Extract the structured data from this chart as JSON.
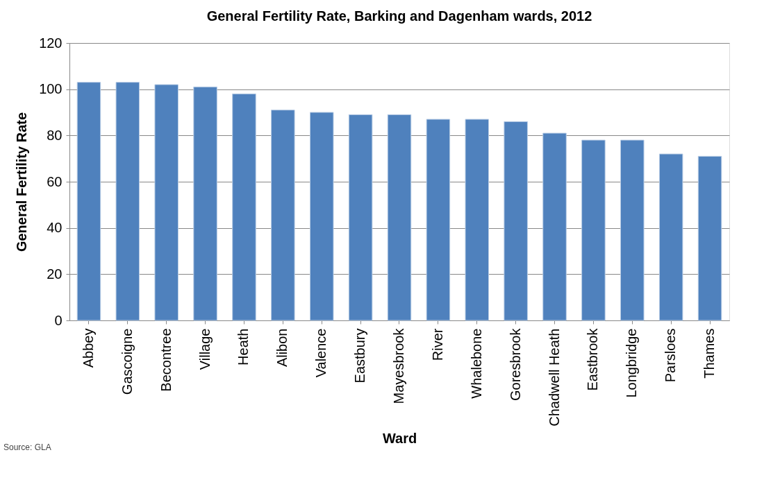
{
  "chart_data": {
    "type": "bar",
    "title": "General Fertility Rate, Barking and Dagenham wards, 2012",
    "xlabel": "Ward",
    "ylabel": "General Fertility Rate",
    "categories": [
      "Abbey",
      "Gascoigne",
      "Becontree",
      "Village",
      "Heath",
      "Alibon",
      "Valence",
      "Eastbury",
      "Mayesbrook",
      "River",
      "Whalebone",
      "Goresbrook",
      "Chadwell Heath",
      "Eastbrook",
      "Longbridge",
      "Parsloes",
      "Thames"
    ],
    "values": [
      103,
      103,
      102,
      101,
      98,
      91,
      90,
      89,
      89,
      87,
      87,
      86,
      81,
      78,
      78,
      72,
      71
    ],
    "color": "#4f81bd",
    "ylim": [
      0,
      120
    ],
    "yticks": [
      0,
      20,
      40,
      60,
      80,
      100,
      120
    ],
    "grid": "y",
    "annotations": [
      "Source: GLA"
    ]
  }
}
